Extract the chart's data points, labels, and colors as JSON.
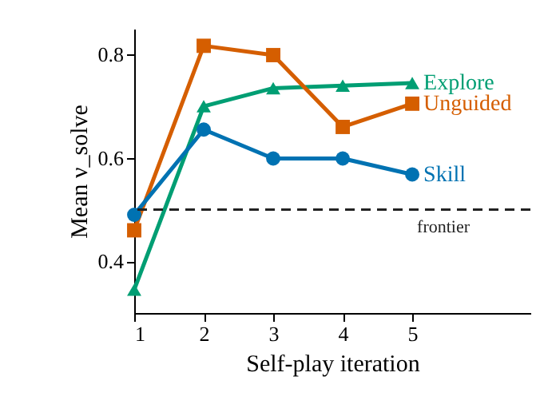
{
  "chart_data": {
    "type": "line",
    "xlabel": "Self-play iteration",
    "ylabel": "Mean ν_solve",
    "x": [
      1,
      2,
      3,
      4,
      5
    ],
    "xlim": [
      1,
      6.7
    ],
    "xticks": [
      1,
      2,
      3,
      4,
      5
    ],
    "ylim": [
      0.3,
      0.85
    ],
    "yticks": [
      0.4,
      0.6,
      0.8
    ],
    "grid": false,
    "legend": false,
    "line_style": "solid",
    "series": [
      {
        "name": "Explore",
        "color": "#009e73",
        "marker": "triangle",
        "values": [
          0.345,
          0.7,
          0.735,
          0.74,
          0.745
        ]
      },
      {
        "name": "Unguided",
        "color": "#d55e00",
        "marker": "square",
        "values": [
          0.46,
          0.817,
          0.799,
          0.66,
          0.705
        ]
      },
      {
        "name": "Skill",
        "color": "#0072b2",
        "marker": "circle",
        "values": [
          0.49,
          0.655,
          0.599,
          0.599,
          0.568
        ]
      }
    ],
    "ref_lines": [
      {
        "axis": "y",
        "value": 0.5,
        "label": "frontier",
        "color": "#222222",
        "line_style": "dashed"
      }
    ]
  }
}
